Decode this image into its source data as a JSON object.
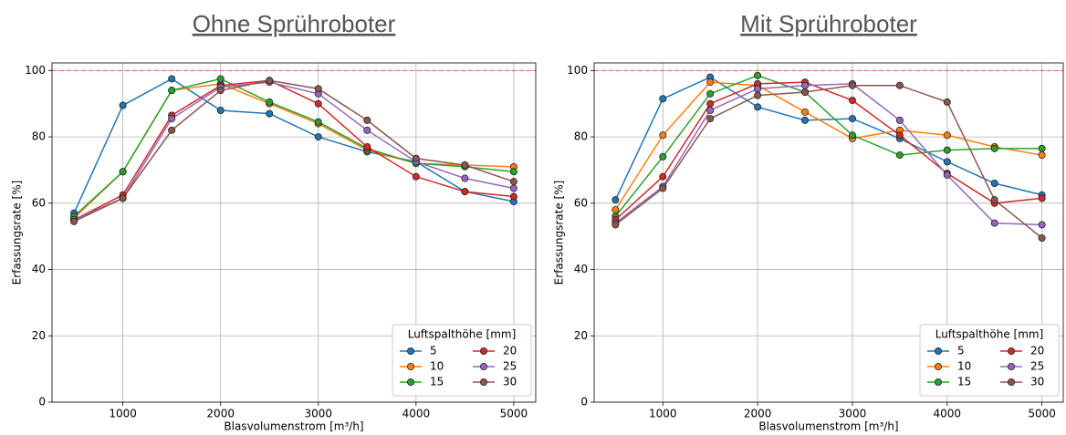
{
  "chart_data": [
    {
      "type": "line",
      "title": "Ohne Sprühroboter",
      "xlabel": "Blasvolumenstrom [m³/h]",
      "ylabel": "Erfassungsrate [%]",
      "x": [
        500,
        1000,
        1500,
        2000,
        2500,
        3000,
        3500,
        4000,
        4500,
        5000
      ],
      "xlim": [
        275,
        5225
      ],
      "xticks": [
        1000,
        2000,
        3000,
        4000,
        5000
      ],
      "ylim": [
        0,
        102.3
      ],
      "yticks": [
        0,
        20,
        40,
        60,
        80,
        100
      ],
      "grid": true,
      "reference_line": {
        "value": 100,
        "color": "#e06060"
      },
      "legend_title": "Luftspalthöhe [mm]",
      "legend": "lower right",
      "series": [
        {
          "name": "5",
          "color": "#1f77b4",
          "values": [
            57,
            89.5,
            97.5,
            88,
            87,
            80,
            75.5,
            72.5,
            63.5,
            60.5
          ]
        },
        {
          "name": "10",
          "color": "#ff7f0e",
          "values": [
            55.5,
            69.5,
            94,
            96,
            90,
            84,
            76,
            72,
            71.5,
            71
          ]
        },
        {
          "name": "15",
          "color": "#2ca02c",
          "values": [
            56,
            69.5,
            94,
            97.5,
            90.5,
            84.5,
            76.5,
            72,
            71,
            69.5
          ]
        },
        {
          "name": "20",
          "color": "#d62728",
          "values": [
            55,
            62.5,
            86.5,
            95.5,
            97,
            90,
            77,
            68,
            63.5,
            62
          ]
        },
        {
          "name": "25",
          "color": "#9467bd",
          "values": [
            55,
            61.5,
            85.5,
            95,
            96.5,
            93,
            82,
            72.5,
            67.5,
            64.5
          ]
        },
        {
          "name": "30",
          "color": "#8c564b",
          "values": [
            54.5,
            61.5,
            82,
            94,
            97,
            94.5,
            85,
            73.5,
            71.5,
            66.5
          ]
        }
      ]
    },
    {
      "type": "line",
      "title": "Mit Sprühroboter",
      "xlabel": "Blasvolumenstrom [m³/h]",
      "ylabel": "Erfassungsrate [%]",
      "x": [
        500,
        1000,
        1500,
        2000,
        2500,
        3000,
        3500,
        4000,
        4500,
        5000
      ],
      "xlim": [
        275,
        5225
      ],
      "xticks": [
        1000,
        2000,
        3000,
        4000,
        5000
      ],
      "ylim": [
        0,
        102.3
      ],
      "yticks": [
        0,
        20,
        40,
        60,
        80,
        100
      ],
      "grid": true,
      "reference_line": {
        "value": 100,
        "color": "#e06060"
      },
      "legend_title": "Luftspalthöhe [mm]",
      "legend": "lower right",
      "series": [
        {
          "name": "5",
          "color": "#1f77b4",
          "values": [
            61,
            91.5,
            98,
            89,
            85,
            85.5,
            79.5,
            72.5,
            66,
            62.5
          ]
        },
        {
          "name": "10",
          "color": "#ff7f0e",
          "values": [
            58,
            80.5,
            96.5,
            95.5,
            87.5,
            79.5,
            82,
            80.5,
            77,
            74.5
          ]
        },
        {
          "name": "15",
          "color": "#2ca02c",
          "values": [
            56,
            74,
            93,
            98.5,
            93.5,
            80.5,
            74.5,
            76,
            76.5,
            76.5
          ]
        },
        {
          "name": "20",
          "color": "#d62728",
          "values": [
            55,
            68,
            90,
            96,
            96.5,
            91,
            80.5,
            69,
            60,
            61.5
          ]
        },
        {
          "name": "25",
          "color": "#9467bd",
          "values": [
            54,
            65,
            88,
            94.5,
            95.5,
            96,
            85,
            68.5,
            54,
            53.5
          ]
        },
        {
          "name": "30",
          "color": "#8c564b",
          "values": [
            53.5,
            64.5,
            85.5,
            92.5,
            93.5,
            95.5,
            95.5,
            90.5,
            61,
            49.5
          ]
        }
      ]
    }
  ]
}
